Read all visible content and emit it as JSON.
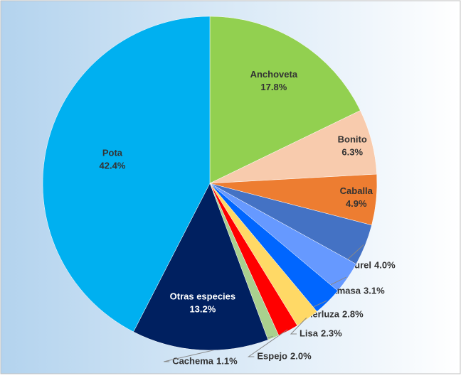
{
  "chart_data": {
    "type": "pie",
    "categories": [
      "Anchoveta",
      "Bonito",
      "Caballa",
      "Jurel",
      "Samasa",
      "Merluza",
      "Lisa",
      "Espejo",
      "Cachema",
      "Otras especies",
      "Pota"
    ],
    "values": [
      17.8,
      6.3,
      4.9,
      4.0,
      3.1,
      2.8,
      2.3,
      2.0,
      1.1,
      13.2,
      42.4
    ],
    "value_labels": [
      "17.8%",
      "6.3%",
      "4.9%",
      "4.0%",
      "3.1%",
      "2.8%",
      "2.3%",
      "2.0%",
      "1.1%",
      "13.2%",
      "42.4%"
    ],
    "colors": [
      "#92d050",
      "#f8cbad",
      "#ed7d31",
      "#4472c4",
      "#6699ff",
      "#0066ff",
      "#ffd966",
      "#ff0000",
      "#a9d08e",
      "#002060",
      "#00b0f0"
    ]
  }
}
